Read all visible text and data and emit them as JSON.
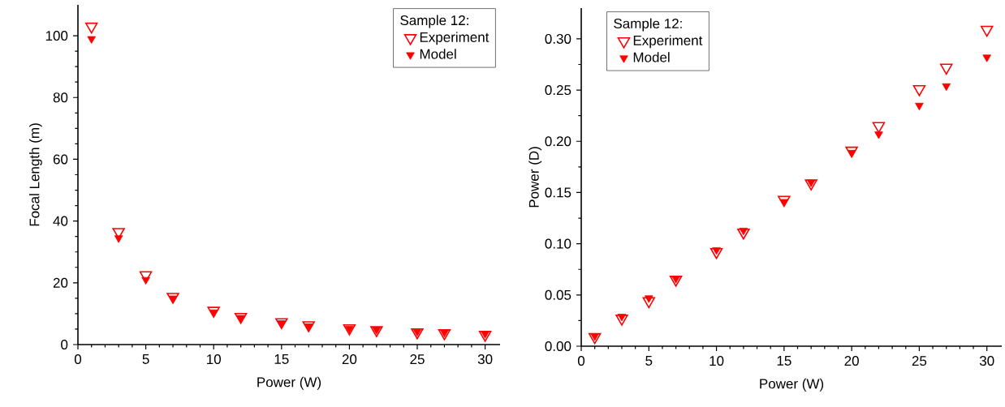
{
  "chart_data": [
    {
      "type": "scatter",
      "xlabel": "Power (W)",
      "ylabel": "Focal Length (m)",
      "legend_title": "Sample 12:",
      "legend": "top right",
      "marker": "triangle",
      "grid": false,
      "x": [
        1,
        3,
        5,
        7,
        10,
        12,
        15,
        17,
        20,
        22,
        25,
        27,
        30
      ],
      "xlim": [
        0,
        31.1
      ],
      "xticks": [
        0,
        5,
        10,
        15,
        20,
        25,
        30
      ],
      "ylim": [
        0,
        110
      ],
      "yticks": [
        0,
        20,
        40,
        60,
        80,
        100
      ],
      "series": [
        {
          "name": "Experiment",
          "color": "#ff0000",
          "values": [
            103,
            36.5,
            22.5,
            15.5,
            11,
            9,
            7.3,
            6.3,
            5.3,
            4.7,
            4,
            3.7,
            3.2
          ]
        },
        {
          "name": "Model",
          "color": "#ff0000",
          "values": [
            99,
            34.5,
            21,
            15,
            10.5,
            8.7,
            7,
            6,
            5.2,
            4.8,
            4.2,
            3.9,
            3.5
          ]
        }
      ]
    },
    {
      "type": "scatter",
      "xlabel": "Power (W)",
      "ylabel": "Power (D)",
      "legend_title": "Sample 12:",
      "legend": "top left",
      "marker": "triangle",
      "grid": false,
      "x": [
        1,
        3,
        5,
        7,
        10,
        12,
        15,
        17,
        20,
        22,
        25,
        27,
        30
      ],
      "xlim": [
        0,
        31.1
      ],
      "xticks": [
        0,
        5,
        10,
        15,
        20,
        25,
        30
      ],
      "ylim": [
        0,
        0.33
      ],
      "yticks": [
        {
          "value": 0,
          "label": "0.00"
        },
        {
          "value": 0.05,
          "label": "0.05"
        },
        {
          "value": 0.1,
          "label": "0.10"
        },
        {
          "value": 0.15,
          "label": "0.15"
        },
        {
          "value": 0.2,
          "label": "0.20"
        },
        {
          "value": 0.25,
          "label": "0.25"
        },
        {
          "value": 0.3,
          "label": "0.30"
        }
      ],
      "series": [
        {
          "name": "Experiment",
          "color": "#ff0000",
          "values": [
            0.009,
            0.027,
            0.044,
            0.065,
            0.092,
            0.111,
            0.143,
            0.159,
            0.191,
            0.215,
            0.251,
            0.272,
            0.309
          ]
        },
        {
          "name": "Model",
          "color": "#ff0000",
          "values": [
            0.01,
            0.029,
            0.047,
            0.066,
            0.094,
            0.113,
            0.141,
            0.16,
            0.189,
            0.207,
            0.235,
            0.254,
            0.282
          ]
        }
      ]
    }
  ]
}
